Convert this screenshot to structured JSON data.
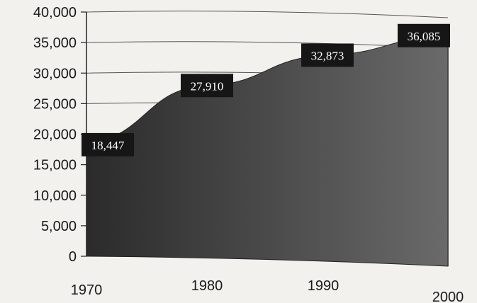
{
  "chart_data": {
    "type": "area",
    "x": [
      1970,
      1980,
      1990,
      2000
    ],
    "x_tick_labels": [
      "1970",
      "1980",
      "1990",
      "2000"
    ],
    "values": [
      18447,
      27910,
      32873,
      36085
    ],
    "data_labels": [
      "18,447",
      "27,910",
      "32,873",
      "36,085"
    ],
    "y_ticks": [
      0,
      5000,
      10000,
      15000,
      20000,
      25000,
      30000,
      35000,
      40000
    ],
    "y_tick_labels": [
      "0",
      "5,000",
      "10,000",
      "15,000",
      "20,000",
      "25,000",
      "30,000",
      "35,000",
      "40,000"
    ],
    "ylim": [
      0,
      40000
    ],
    "xlim": [
      1970,
      2000
    ],
    "grid": "horizontal",
    "legend": "none",
    "fill_color": "#4a4a4a",
    "label_bg": "#161616",
    "label_color": "#ffffff"
  }
}
